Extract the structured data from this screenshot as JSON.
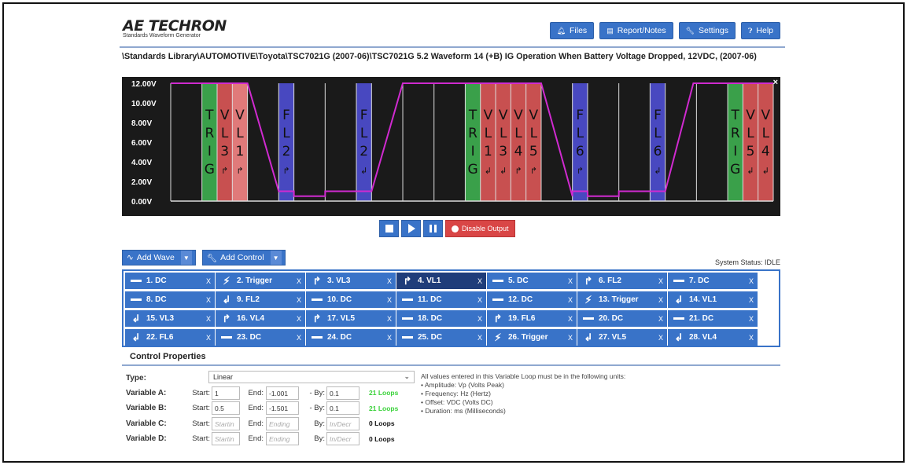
{
  "header": {
    "logo_main": "AE TECHRON",
    "logo_sub": "Standards Waveform Generator",
    "buttons": [
      {
        "label": "Files",
        "icon": "bell-icon"
      },
      {
        "label": "Report/Notes",
        "icon": "document-icon"
      },
      {
        "label": "Settings",
        "icon": "wrench-icon"
      },
      {
        "label": "Help",
        "icon": "question-icon"
      }
    ]
  },
  "path_text": "\\Standards Library\\AUTOMOTIVE\\Toyota\\TSC7021G (2007-06)\\TSC7021G 5.2 Waveform 14 (+B) IG Operation When Battery Voltage Dropped, 12VDC, (2007-06)",
  "waveform": {
    "y_ticks": [
      "12.00V",
      "10.00V",
      "8.00V",
      "6.00V",
      "4.00V",
      "2.00V",
      "0.00V"
    ],
    "close_label": "×",
    "markers": [
      {
        "chars": [
          "T",
          "R",
          "I",
          "G"
        ],
        "color": "green"
      },
      {
        "chars": [
          "V",
          "L",
          "3",
          "↱"
        ],
        "color": "red"
      },
      {
        "chars": [
          "V",
          "L",
          "1",
          "↱"
        ],
        "color": "lightred"
      },
      {
        "chars": [
          "F",
          "L",
          "2",
          "↱"
        ],
        "color": "blue"
      },
      {
        "chars": [
          "F",
          "L",
          "2",
          "↲"
        ],
        "color": "blue"
      },
      {
        "chars": [
          "T",
          "R",
          "I",
          "G"
        ],
        "color": "green"
      },
      {
        "chars": [
          "V",
          "L",
          "1",
          "↲"
        ],
        "color": "red"
      },
      {
        "chars": [
          "V",
          "L",
          "3",
          "↲"
        ],
        "color": "red"
      },
      {
        "chars": [
          "V",
          "L",
          "4",
          "↱"
        ],
        "color": "red"
      },
      {
        "chars": [
          "V",
          "L",
          "5",
          "↱"
        ],
        "color": "red"
      },
      {
        "chars": [
          "F",
          "L",
          "6",
          "↱"
        ],
        "color": "blue"
      },
      {
        "chars": [
          "F",
          "L",
          "6",
          "↲"
        ],
        "color": "blue"
      },
      {
        "chars": [
          "T",
          "R",
          "I",
          "G"
        ],
        "color": "green"
      },
      {
        "chars": [
          "V",
          "L",
          "5",
          "↲"
        ],
        "color": "red"
      },
      {
        "chars": [
          "V",
          "L",
          "4",
          "↲"
        ],
        "color": "red"
      }
    ],
    "colors": {
      "green": "#3aa04a",
      "red": "#c85050",
      "lightred": "#e07a7a",
      "blue": "#4848c0",
      "trace": "#d02ad0"
    }
  },
  "transport": {
    "stop_icon": "stop-icon",
    "play_icon": "play-icon",
    "pause_icon": "pause-icon",
    "disable_label": "Disable Output"
  },
  "addbar": {
    "add_wave": "Add Wave",
    "add_control": "Add Control",
    "status": "System Status: IDLE"
  },
  "steps": [
    [
      {
        "label": "1. DC",
        "icon": "dc"
      },
      {
        "label": "2. Trigger",
        "icon": "trigger"
      },
      {
        "label": "3. VL3",
        "icon": "loop-start"
      },
      {
        "label": "4. VL1",
        "icon": "loop-start",
        "selected": true
      },
      {
        "label": "5. DC",
        "icon": "dc"
      },
      {
        "label": "6. FL2",
        "icon": "loop-start"
      },
      {
        "label": "7. DC",
        "icon": "dc"
      }
    ],
    [
      {
        "label": "8. DC",
        "icon": "dc"
      },
      {
        "label": "9. FL2",
        "icon": "loop-end"
      },
      {
        "label": "10. DC",
        "icon": "dc"
      },
      {
        "label": "11. DC",
        "icon": "dc"
      },
      {
        "label": "12. DC",
        "icon": "dc"
      },
      {
        "label": "13. Trigger",
        "icon": "trigger"
      },
      {
        "label": "14. VL1",
        "icon": "loop-end"
      }
    ],
    [
      {
        "label": "15. VL3",
        "icon": "loop-end"
      },
      {
        "label": "16. VL4",
        "icon": "loop-start"
      },
      {
        "label": "17. VL5",
        "icon": "loop-start"
      },
      {
        "label": "18. DC",
        "icon": "dc"
      },
      {
        "label": "19. FL6",
        "icon": "loop-start"
      },
      {
        "label": "20. DC",
        "icon": "dc"
      },
      {
        "label": "21. DC",
        "icon": "dc"
      }
    ],
    [
      {
        "label": "22. FL6",
        "icon": "loop-end"
      },
      {
        "label": "23. DC",
        "icon": "dc"
      },
      {
        "label": "24. DC",
        "icon": "dc"
      },
      {
        "label": "25. DC",
        "icon": "dc"
      },
      {
        "label": "26. Trigger",
        "icon": "trigger"
      },
      {
        "label": "27. VL5",
        "icon": "loop-end"
      },
      {
        "label": "28. VL4",
        "icon": "loop-end"
      }
    ]
  ],
  "remove_label": "X",
  "control_properties": {
    "title": "Control Properties",
    "type_label": "Type:",
    "type_value": "Linear",
    "start_label": "Start:",
    "end_label": "End:",
    "by_label_dash": "- By:",
    "by_label": "By:",
    "variables": [
      {
        "label": "Variable A:",
        "start": "1",
        "end": "-1.001",
        "by": "0.1",
        "loops": "21 Loops",
        "active": true
      },
      {
        "label": "Variable B:",
        "start": "0.5",
        "end": "-1.501",
        "by": "0.1",
        "loops": "21 Loops",
        "active": true
      },
      {
        "label": "Variable C:",
        "start_ph": "Startin",
        "end_ph": "Ending",
        "by_ph": "In/Decr",
        "loops": "0 Loops",
        "active": false
      },
      {
        "label": "Variable D:",
        "start_ph": "Startin",
        "end_ph": "Ending",
        "by_ph": "In/Decr",
        "loops": "0 Loops",
        "active": false
      }
    ],
    "notes": [
      "All values entered in this Variable Loop must be in the following units:",
      "• Amplitude: Vp (Volts Peak)",
      "• Frequency: Hz (Hertz)",
      "• Offset: VDC (Volts DC)",
      "• Duration: ms (Milliseconds)"
    ]
  }
}
